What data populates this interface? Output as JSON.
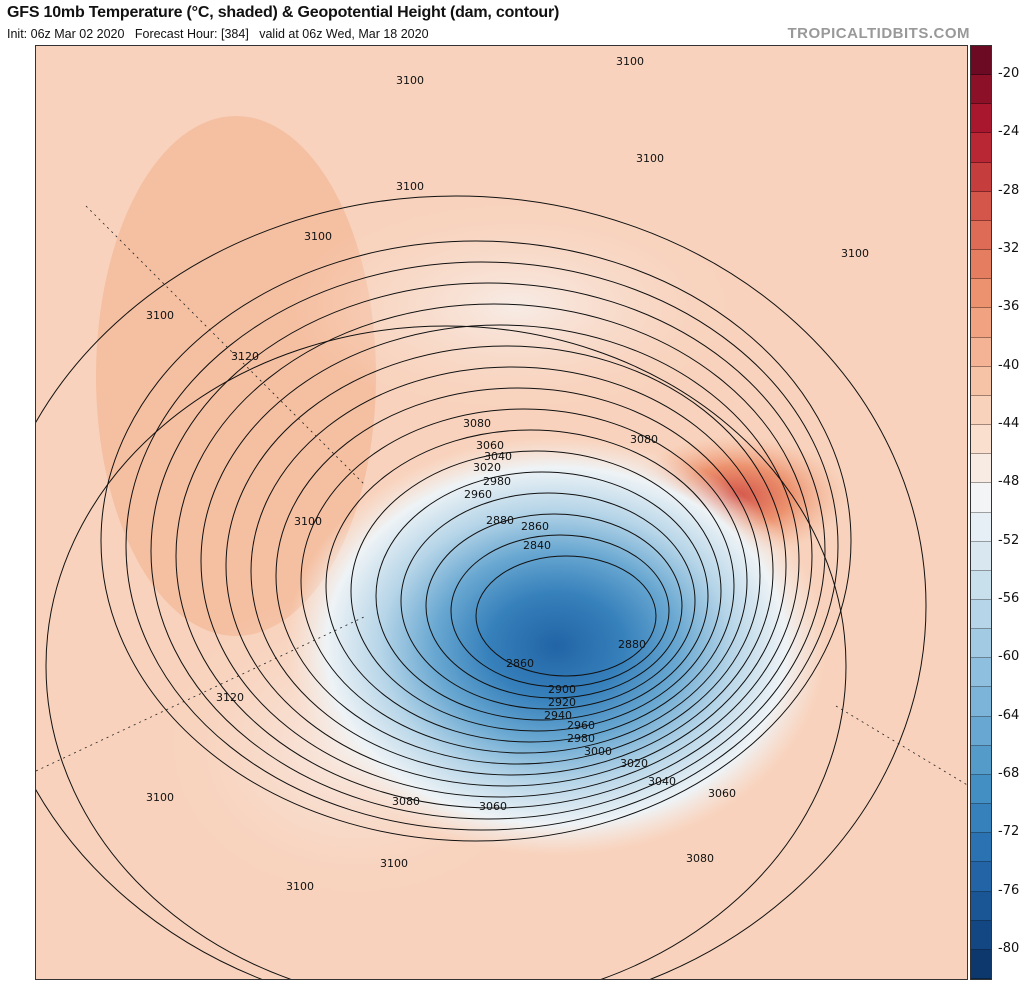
{
  "header": {
    "title": "GFS 10mb Temperature (°C, shaded) & Geopotential Height (dam, contour)",
    "subtitle": "Init: 06z Mar 02 2020   Forecast Hour: [384]   valid at 06z Wed, Mar 18 2020",
    "brand": "TROPICALTIDBITS.COM"
  },
  "colorbar": {
    "range": [
      -82,
      -18
    ],
    "step": 2,
    "tick_labels": [
      "-20",
      "-24",
      "-28",
      "-32",
      "-36",
      "-40",
      "-44",
      "-48",
      "-52",
      "-56",
      "-60",
      "-64",
      "-68",
      "-72",
      "-76",
      "-80"
    ],
    "colors": [
      "#6b0a22",
      "#8c1028",
      "#a8172e",
      "#b92735",
      "#c63d3d",
      "#d4554a",
      "#de6b55",
      "#e57e60",
      "#ec926e",
      "#f1a381",
      "#f4b394",
      "#f7c3a7",
      "#f9d2bc",
      "#fadfcf",
      "#f7ebe4",
      "#f3f4f5",
      "#e6eff5",
      "#d8e7f0",
      "#c8dfec",
      "#b6d5e8",
      "#a3cae3",
      "#8fbfde",
      "#7cb3d8",
      "#68a7d1",
      "#549bca",
      "#438ec3",
      "#3680bb",
      "#2b72b2",
      "#2264a6",
      "#1a5596",
      "#134783",
      "#0c386d"
    ]
  },
  "map": {
    "projection": "north-polar-stereographic",
    "low_center": "Canadian Arctic / Hudson Bay",
    "contour_labels": [
      "3100",
      "3100",
      "3100",
      "3100",
      "3100",
      "3100",
      "3120",
      "3080",
      "3060",
      "3040",
      "3020",
      "2980",
      "2960",
      "3100",
      "2880",
      "2860",
      "2840",
      "2880",
      "2860",
      "2900",
      "2920",
      "2940",
      "2960",
      "2980",
      "3000",
      "3020",
      "3040",
      "3060",
      "3120",
      "3100",
      "3080",
      "3060",
      "3080",
      "3100",
      "3100",
      "3100",
      "3080"
    ]
  }
}
